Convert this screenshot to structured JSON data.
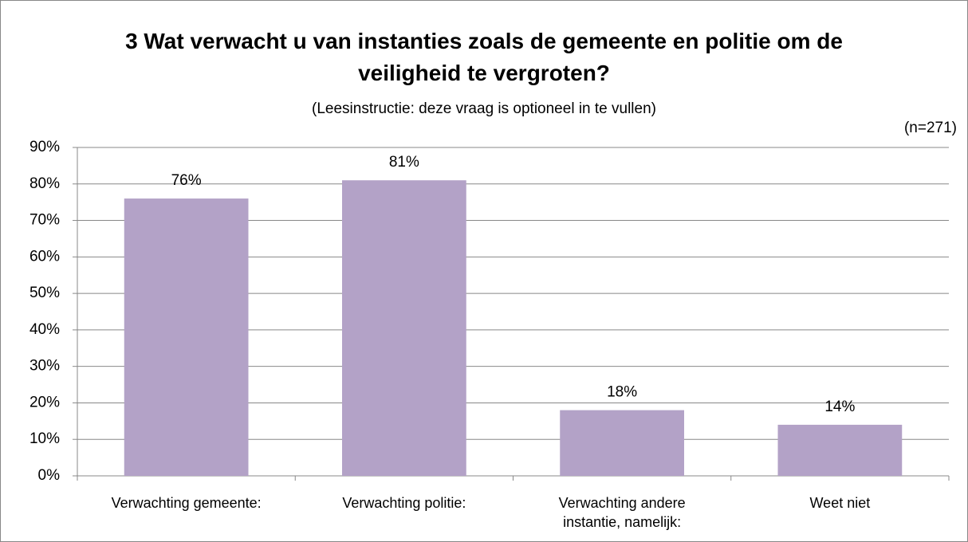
{
  "chart_data": {
    "type": "bar",
    "title": "3 Wat verwacht u van instanties zoals de gemeente en politie om de veiligheid te vergroten?",
    "subtitle": "(Leesinstructie: deze vraag is optioneel in te vullen)",
    "annotation": "(n=271)",
    "categories": [
      "Verwachting gemeente:",
      "Verwachting politie:",
      "Verwachting andere instantie, namelijk:",
      "Weet niet"
    ],
    "values": [
      76,
      81,
      18,
      14
    ],
    "value_labels": [
      "76%",
      "81%",
      "18%",
      "14%"
    ],
    "color": "#b3a2c7",
    "ylim": [
      0,
      90
    ],
    "yticks": [
      {
        "value": 0,
        "label": "0%"
      },
      {
        "value": 10,
        "label": "10%"
      },
      {
        "value": 20,
        "label": "20%"
      },
      {
        "value": 30,
        "label": "30%"
      },
      {
        "value": 40,
        "label": "40%"
      },
      {
        "value": 50,
        "label": "50%"
      },
      {
        "value": 60,
        "label": "60%"
      },
      {
        "value": 70,
        "label": "70%"
      },
      {
        "value": 80,
        "label": "80%"
      },
      {
        "value": 90,
        "label": "90%"
      }
    ],
    "grid": true
  }
}
